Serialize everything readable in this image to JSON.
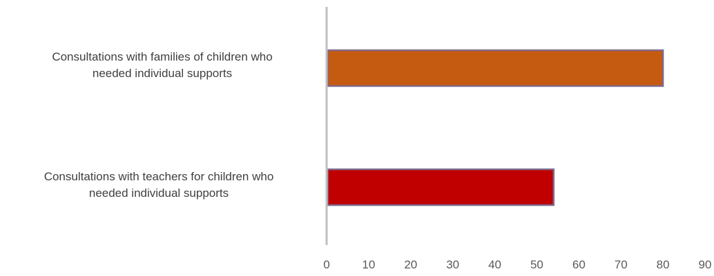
{
  "chart_data": {
    "type": "bar",
    "orientation": "horizontal",
    "categories": [
      [
        "Consultations with families of children who",
        "needed individual supports"
      ],
      [
        "Consultations with teachers for children who",
        "needed individual supports"
      ]
    ],
    "values": [
      80,
      54
    ],
    "bar_colors": [
      "#c55a11",
      "#c00000"
    ],
    "bar_border_color": "#7f6a8c",
    "axis_color": "#bfbfbf",
    "tick_color": "#595959",
    "xlim": [
      0,
      90
    ],
    "xticks": [
      0,
      10,
      20,
      30,
      40,
      50,
      60,
      70,
      80,
      90
    ],
    "title": "",
    "xlabel": "",
    "ylabel": "",
    "grid": false,
    "legend": false
  }
}
